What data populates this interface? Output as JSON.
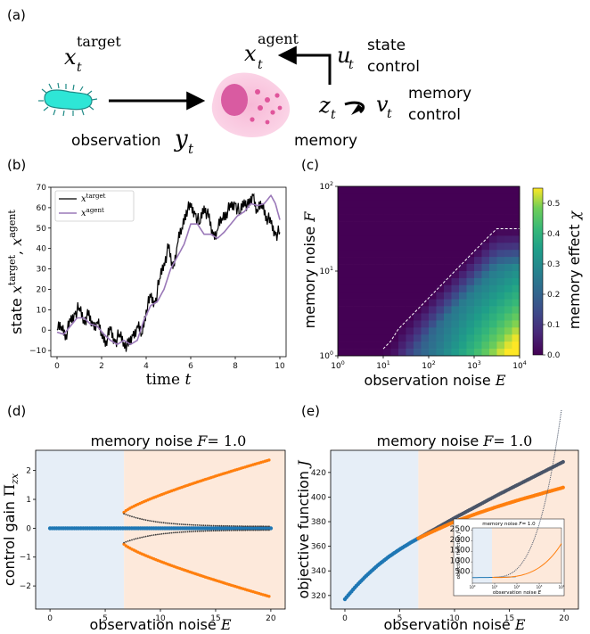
{
  "figure": {
    "panel_labels": [
      "(a)",
      "(b)",
      "(c)",
      "(d)",
      "(e)"
    ],
    "panel_a": {
      "target_sym": "x",
      "target_sub": "t",
      "target_sup": "target",
      "agent_sym": "x",
      "agent_sub": "t",
      "agent_sup": "agent",
      "u_sym": "u",
      "u_sub": "t",
      "state_control_1": "state",
      "state_control_2": "control",
      "z_sym": "z",
      "z_sub": "t",
      "v_sym": "v",
      "v_sub": "t",
      "memory_control_1": "memory",
      "memory_control_2": "control",
      "observation_word": "observation",
      "y_sym": "y",
      "y_sub": "t",
      "memory_word": "memory"
    }
  },
  "chart_data": [
    {
      "panel": "(b)",
      "type": "line",
      "xlabel_word": "time",
      "xlabel_sym": "t",
      "ylabel_word": "state",
      "ylabel_sym1": "x",
      "ylabel_sup1": "target",
      "ylabel_sym2": "x",
      "ylabel_sup2": "agent",
      "xlim": [
        0,
        10
      ],
      "ylim": [
        -13,
        70
      ],
      "xticks": [
        "0",
        "2",
        "4",
        "6",
        "8",
        "10"
      ],
      "yticks": [
        "−10",
        "0",
        "10",
        "20",
        "30",
        "40",
        "50",
        "60",
        "70"
      ],
      "legend_placement": "top-left",
      "series": [
        {
          "name": "x",
          "name_sup": "target",
          "color": "#000000",
          "x": [
            0,
            0.2,
            0.4,
            0.6,
            0.8,
            1.0,
            1.2,
            1.4,
            1.6,
            1.8,
            2.0,
            2.2,
            2.4,
            2.6,
            2.8,
            3.0,
            3.2,
            3.4,
            3.6,
            3.8,
            4.0,
            4.2,
            4.4,
            4.6,
            4.8,
            5.0,
            5.2,
            5.4,
            5.6,
            5.8,
            6.0,
            6.2,
            6.4,
            6.6,
            6.8,
            7.0,
            7.2,
            7.4,
            7.6,
            7.8,
            8.0,
            8.2,
            8.4,
            8.6,
            8.8,
            9.0,
            9.2,
            9.4,
            9.6,
            9.8,
            10.0
          ],
          "y": [
            0,
            2,
            -2,
            4,
            8,
            11,
            5,
            7,
            2,
            4,
            -2,
            -5,
            0,
            -6,
            -2,
            -6,
            -8,
            -3,
            2,
            -2,
            10,
            16,
            13,
            25,
            33,
            40,
            30,
            42,
            50,
            59,
            60,
            57,
            52,
            61,
            55,
            46,
            49,
            55,
            58,
            60,
            62,
            57,
            64,
            60,
            66,
            58,
            62,
            56,
            52,
            47,
            48
          ]
        },
        {
          "name": "x",
          "name_sup": "agent",
          "color": "#9a78b8",
          "x": [
            0,
            0.3,
            0.6,
            0.9,
            1.2,
            1.5,
            1.8,
            2.1,
            2.4,
            2.7,
            3.0,
            3.3,
            3.6,
            3.9,
            4.2,
            4.5,
            4.8,
            5.1,
            5.4,
            5.7,
            6.0,
            6.3,
            6.6,
            6.9,
            7.2,
            7.5,
            7.8,
            8.1,
            8.4,
            8.7,
            9.0,
            9.3,
            9.6,
            9.8,
            10.0
          ],
          "y": [
            -1,
            -2,
            2,
            6,
            6,
            3,
            2,
            -2,
            -5,
            -7,
            -5,
            -7,
            -5,
            5,
            12,
            14,
            20,
            30,
            36,
            42,
            52,
            52,
            47,
            47,
            45,
            48,
            52,
            56,
            58,
            62,
            61,
            62,
            66,
            62,
            54
          ]
        }
      ]
    },
    {
      "panel": "(c)",
      "type": "heatmap",
      "xlabel_word": "observation noise",
      "xlabel_sym": "E",
      "ylabel_word": "memory noise",
      "ylabel_sym": "F",
      "x_scale": "log",
      "y_scale": "log",
      "xlim": [
        1,
        10000
      ],
      "ylim": [
        1,
        100
      ],
      "xticks": [
        {
          "b": "10",
          "e": "0"
        },
        {
          "b": "10",
          "e": "1"
        },
        {
          "b": "10",
          "e": "2"
        },
        {
          "b": "10",
          "e": "3"
        },
        {
          "b": "10",
          "e": "4"
        }
      ],
      "yticks": [
        {
          "b": "10",
          "e": "0"
        },
        {
          "b": "10",
          "e": "1"
        },
        {
          "b": "10",
          "e": "2"
        }
      ],
      "colorbar_label_word": "memory effect",
      "colorbar_label_sym": "χ",
      "colorbar_range": [
        0,
        0.55
      ],
      "colorbar_ticks": [
        "0.0",
        "0.1",
        "0.2",
        "0.3",
        "0.4",
        "0.5"
      ],
      "colormap": "viridis",
      "annotation": "dashed white boundary where memory effect becomes non-zero"
    },
    {
      "panel": "(d)",
      "type": "scatter",
      "title_word": "memory noise",
      "title_sym": "F",
      "title_value": "= 1.0",
      "xlabel_word": "observation noise",
      "xlabel_sym": "E",
      "ylabel_word": "control gain",
      "ylabel_sym": "Π",
      "ylabel_sub": "zx",
      "xlim": [
        -1.3,
        21.3
      ],
      "ylim": [
        -2.8,
        2.7
      ],
      "xticks": [
        "0",
        "5",
        "10",
        "15",
        "20"
      ],
      "yticks": [
        "−2",
        "−1",
        "0",
        "1",
        "2"
      ],
      "threshold_E": 6.7,
      "region_colors": {
        "left": "#e6eef7",
        "right": "#fde9db"
      },
      "series": [
        {
          "name": "",
          "color": "#1f77b4",
          "segment": "zero branch",
          "E_range": [
            0,
            20
          ],
          "value": 0
        },
        {
          "name": "",
          "color": "#ff7f0e",
          "segment": "outer branches",
          "E_range": [
            6.7,
            20
          ],
          "value_at_start": 0.55,
          "value_at_end": 2.38
        },
        {
          "name": "",
          "color": "#3a3a3a",
          "segment": "inner branches",
          "E_range": [
            6.7,
            20
          ],
          "value_at_start": 0.5,
          "value_at_end": 0.06
        }
      ]
    },
    {
      "panel": "(e)",
      "type": "scatter",
      "title_word": "memory noise",
      "title_sym": "F",
      "title_value": "= 1.0",
      "xlabel_word": "observation noise",
      "xlabel_sym": "E",
      "ylabel_word": "objective function",
      "ylabel_sym": "J",
      "xlim": [
        -1.3,
        21.3
      ],
      "ylim": [
        309,
        438
      ],
      "xticks": [
        "0",
        "5",
        "10",
        "15",
        "20"
      ],
      "yticks": [
        "320",
        "340",
        "360",
        "380",
        "400",
        "420"
      ],
      "threshold_E": 6.7,
      "series": [
        {
          "name": "",
          "color": "#1f77b4",
          "E": [
            0,
            1,
            2,
            3,
            4,
            5,
            6,
            6.7
          ],
          "J": [
            317,
            327.5,
            336.5,
            344.5,
            351.5,
            357.5,
            363,
            366.5
          ]
        },
        {
          "name": "",
          "color": "#4a5568",
          "E": [
            6.7,
            8,
            10,
            12,
            14,
            16,
            18,
            20
          ],
          "J": [
            366.5,
            373,
            383,
            392.5,
            402,
            411,
            420,
            429
          ]
        },
        {
          "name": "",
          "color": "#ff7f0e",
          "E": [
            6.7,
            8,
            10,
            12,
            14,
            16,
            18,
            20
          ],
          "J": [
            366.5,
            372,
            380,
            386.5,
            392.5,
            398,
            403,
            408
          ]
        }
      ],
      "inset": {
        "title_word": "memory noise",
        "title_sym": "F",
        "title_value": "= 1.0",
        "xlabel_word": "observation noise",
        "xlabel_sym": "E",
        "ylabel_word": "objective function",
        "ylabel_sym": "J",
        "x_scale": "log",
        "yticks": [
          "500",
          "1000",
          "1500",
          "2000",
          "2500"
        ],
        "xticks": [
          {
            "b": "10",
            "e": "0"
          },
          {
            "b": "10",
            "e": "1"
          },
          {
            "b": "10",
            "e": "2"
          },
          {
            "b": "10",
            "e": "3"
          },
          {
            "b": "10",
            "e": "4"
          }
        ]
      }
    }
  ]
}
